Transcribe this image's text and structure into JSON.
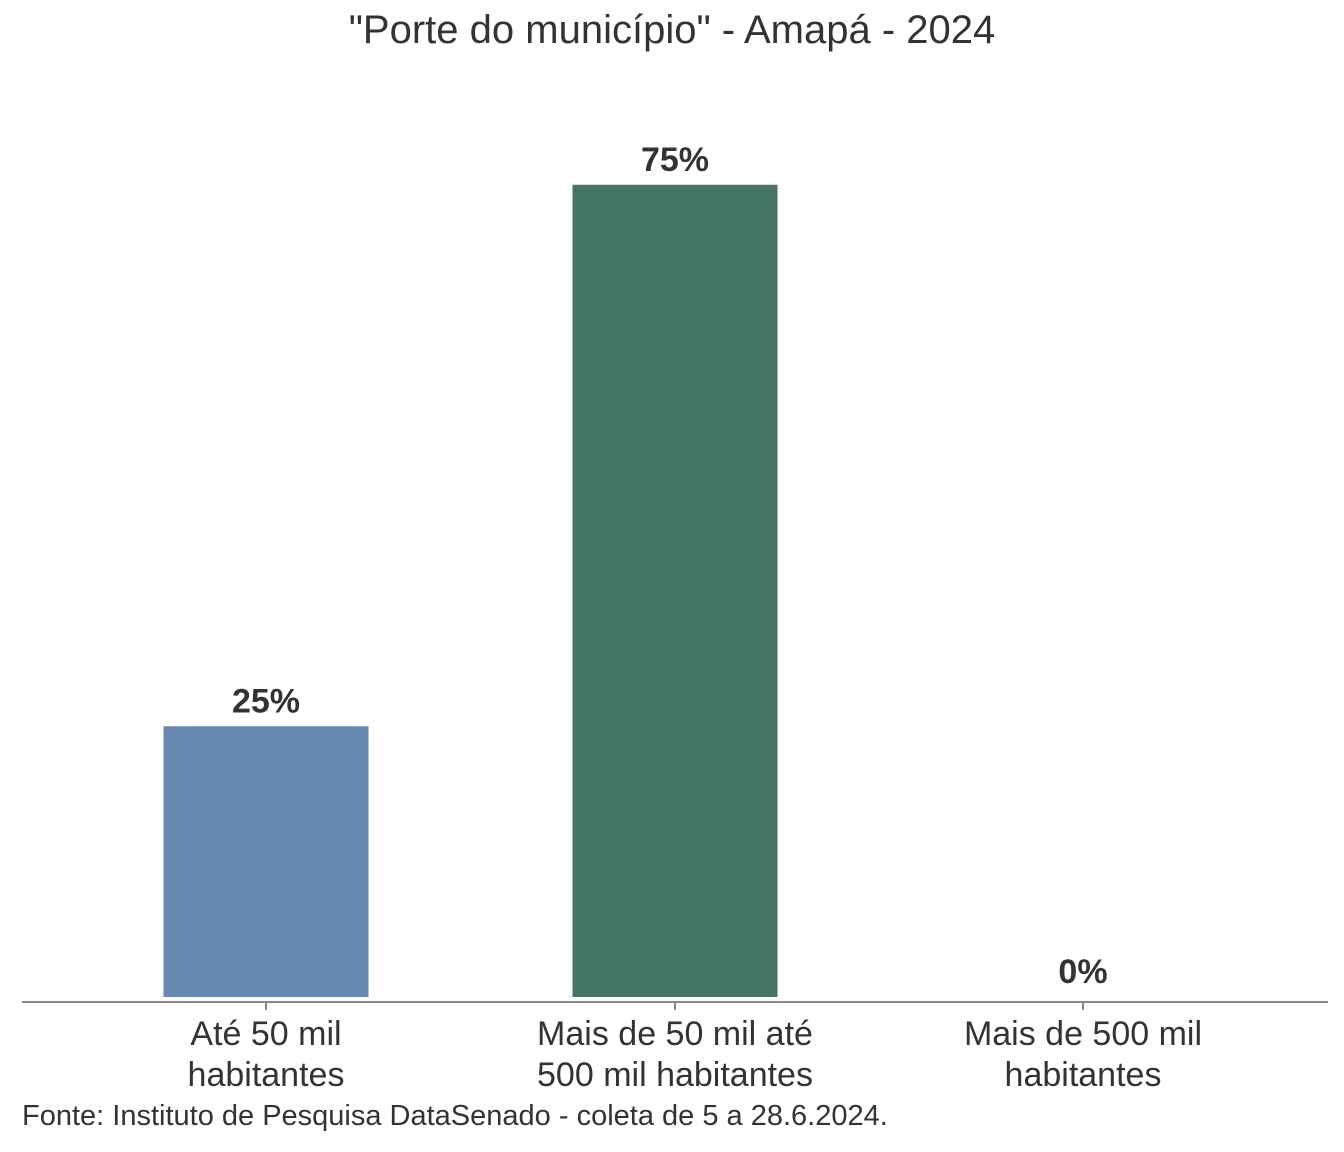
{
  "chart_data": {
    "type": "bar",
    "title": "\"Porte do município\" - Amapá - 2024",
    "categories": [
      [
        "Até 50 mil",
        "habitantes"
      ],
      [
        "Mais de 50 mil até",
        "500 mil habitantes"
      ],
      [
        "Mais de 500 mil",
        "habitantes"
      ]
    ],
    "values": [
      25,
      75,
      0
    ],
    "value_labels": [
      "25%",
      "75%",
      "0%"
    ],
    "colors": [
      "#6688ae",
      "#457563",
      "#c0504d"
    ],
    "ylim": [
      0,
      80
    ],
    "grid": false,
    "legend": "none",
    "source": "Fonte: Instituto de Pesquisa DataSenado - coleta de 5 a 28.6.2024."
  }
}
